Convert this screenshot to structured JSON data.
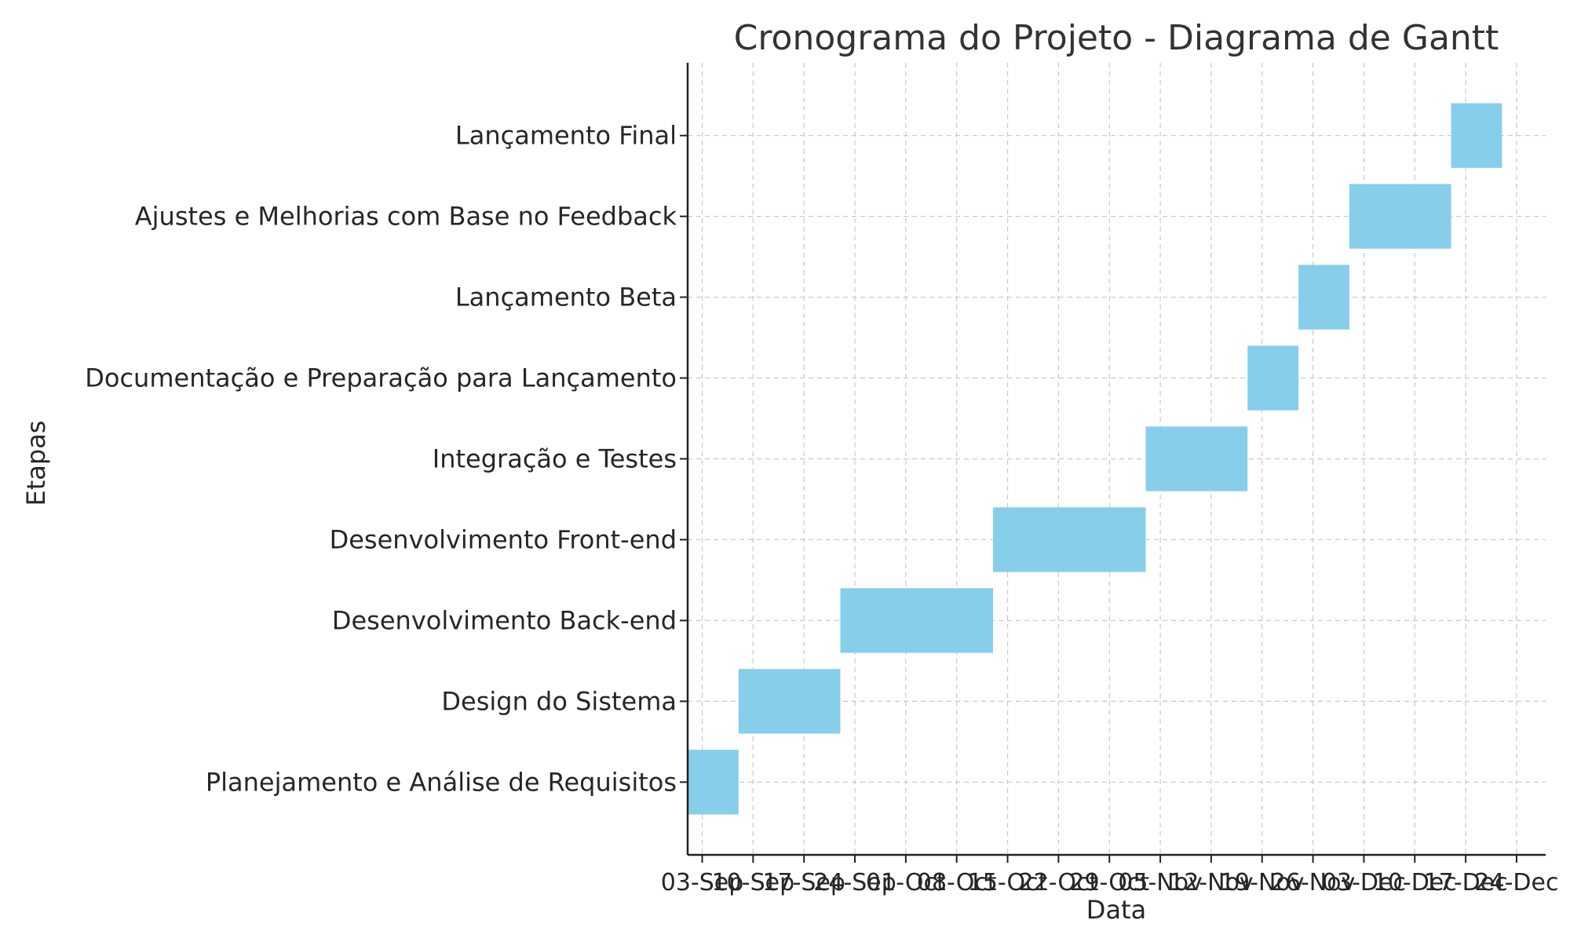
{
  "chart_data": {
    "type": "gantt",
    "title": "Cronograma do Projeto - Diagrama de Gantt",
    "xlabel": "Data",
    "ylabel": "Etapas",
    "grid": true,
    "bar_color": "#87ceeb",
    "x_ticks": [
      "03-Sep",
      "10-Sep",
      "17-Sep",
      "24-Sep",
      "01-Oct",
      "08-Oct",
      "15-Oct",
      "22-Oct",
      "29-Oct",
      "05-Nov",
      "12-Nov",
      "19-Nov",
      "26-Nov",
      "03-Dec",
      "10-Dec",
      "17-Dec",
      "24-Dec"
    ],
    "xlim": [
      "2023-09-01",
      "2023-12-28"
    ],
    "tasks": [
      {
        "name": "Planejamento e Análise de Requisitos",
        "start": "2023-09-01",
        "end": "2023-09-08"
      },
      {
        "name": "Design do Sistema",
        "start": "2023-09-08",
        "end": "2023-09-22"
      },
      {
        "name": "Desenvolvimento Back-end",
        "start": "2023-09-22",
        "end": "2023-10-13"
      },
      {
        "name": "Desenvolvimento Front-end",
        "start": "2023-10-13",
        "end": "2023-11-03"
      },
      {
        "name": "Integração e Testes",
        "start": "2023-11-03",
        "end": "2023-11-17"
      },
      {
        "name": "Documentação e Preparação para Lançamento",
        "start": "2023-11-17",
        "end": "2023-11-24"
      },
      {
        "name": "Lançamento Beta",
        "start": "2023-11-24",
        "end": "2023-12-01"
      },
      {
        "name": "Ajustes e Melhorias com Base no Feedback",
        "start": "2023-12-01",
        "end": "2023-12-15"
      },
      {
        "name": "Lançamento Final",
        "start": "2023-12-15",
        "end": "2023-12-22"
      }
    ]
  }
}
